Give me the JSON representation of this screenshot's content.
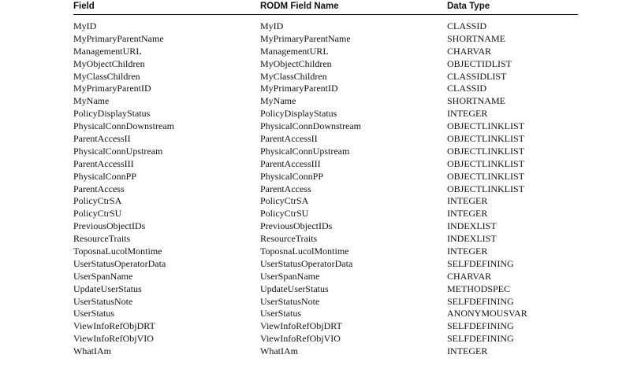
{
  "table": {
    "headers": [
      "Field",
      "RODM Field Name",
      "Data Type"
    ],
    "rows": [
      [
        "MyID",
        "MyID",
        "CLASSID"
      ],
      [
        "MyPrimaryParentName",
        "MyPrimaryParentName",
        "SHORTNAME"
      ],
      [
        "ManagementURL",
        "ManagementURL",
        "CHARVAR"
      ],
      [
        "MyObjectChildren",
        "MyObjectChildren",
        "OBJECTIDLIST"
      ],
      [
        "MyClassChildren",
        "MyClassChildren",
        "CLASSIDLIST"
      ],
      [
        "MyPrimaryParentID",
        "MyPrimaryParentID",
        "CLASSID"
      ],
      [
        "MyName",
        "MyName",
        "SHORTNAME"
      ],
      [
        "PolicyDisplayStatus",
        "PolicyDisplayStatus",
        "INTEGER"
      ],
      [
        "PhysicalConnDownstream",
        "PhysicalConnDownstream",
        "OBJECTLINKLIST"
      ],
      [
        "ParentAccessII",
        "ParentAccessII",
        "OBJECTLINKLIST"
      ],
      [
        "PhysicalConnUpstream",
        "PhysicalConnUpstream",
        "OBJECTLINKLIST"
      ],
      [
        "ParentAccessIII",
        "ParentAccessIII",
        "OBJECTLINKLIST"
      ],
      [
        "PhysicalConnPP",
        "PhysicalConnPP",
        "OBJECTLINKLIST"
      ],
      [
        "ParentAccess",
        "ParentAccess",
        "OBJECTLINKLIST"
      ],
      [
        "PolicyCtrSA",
        "PolicyCtrSA",
        "INTEGER"
      ],
      [
        "PolicyCtrSU",
        "PolicyCtrSU",
        "INTEGER"
      ],
      [
        "PreviousObjectIDs",
        "PreviousObjectIDs",
        "INDEXLIST"
      ],
      [
        "ResourceTraits",
        "ResourceTraits",
        "INDEXLIST"
      ],
      [
        "ToposnaLucolMontime",
        "ToposnaLucolMontime",
        "INTEGER"
      ],
      [
        "UserStatusOperatorData",
        "UserStatusOperatorData",
        "SELFDEFINING"
      ],
      [
        "UserSpanName",
        "UserSpanName",
        "CHARVAR"
      ],
      [
        "UpdateUserStatus",
        "UpdateUserStatus",
        "METHODSPEC"
      ],
      [
        "UserStatusNote",
        "UserStatusNote",
        "SELFDEFINING"
      ],
      [
        "UserStatus",
        "UserStatus",
        "ANONYMOUSVAR"
      ],
      [
        "ViewInfoRefObjDRT",
        "ViewInfoRefObjDRT",
        "SELFDEFINING"
      ],
      [
        "ViewInfoRefObjVIO",
        "ViewInfoRefObjVIO",
        "SELFDEFINING"
      ],
      [
        "WhatIAm",
        "WhatIAm",
        "INTEGER"
      ]
    ]
  }
}
